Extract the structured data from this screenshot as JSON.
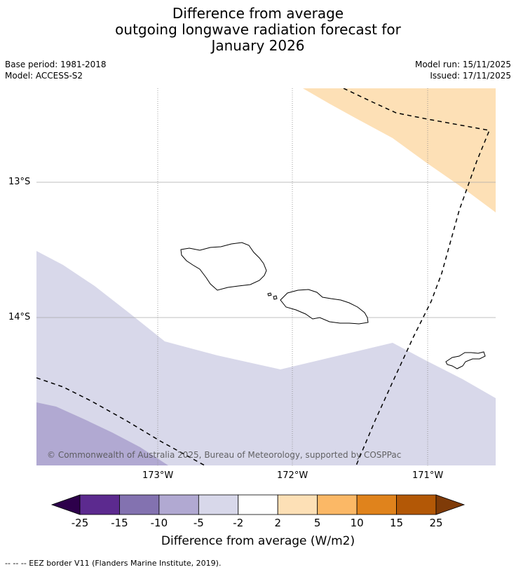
{
  "title": {
    "line1": "Difference from average",
    "line2": "outgoing longwave radiation forecast for",
    "line3": "January 2026"
  },
  "meta": {
    "base_period": "Base period: 1981-2018",
    "model": "Model: ACCESS-S2",
    "model_run": "Model run: 15/11/2025",
    "issued": "Issued: 17/11/2025"
  },
  "map": {
    "lat_labels": [
      "13°S",
      "14°S"
    ],
    "lon_labels": [
      "173°W",
      "172°W",
      "171°W"
    ],
    "copyright": "© Commonwealth of Australia 2025, Bureau of Meteorology, supported by COSPPac",
    "colors": {
      "positive_2_5": "#fde0b6",
      "negative_2_5": "#d8d8ea",
      "negative_5_10": "#b1a9d2",
      "coast": "#000000",
      "gridline": "#999999"
    }
  },
  "colorbar": {
    "tick_labels": [
      "-25",
      "-15",
      "-10",
      "-5",
      "-2",
      "2",
      "5",
      "10",
      "15",
      "25"
    ],
    "colors": [
      "#2d004b",
      "#5c2a8f",
      "#8372b0",
      "#b1a9d2",
      "#d8d8ea",
      "#ffffff",
      "#fde0b6",
      "#fbb866",
      "#e0831c",
      "#b35806",
      "#7f3b08"
    ],
    "label": "Difference from average (W/m2)"
  },
  "footer": "--  --  -- EEZ border V11 (Flanders Marine Institute, 2019)."
}
